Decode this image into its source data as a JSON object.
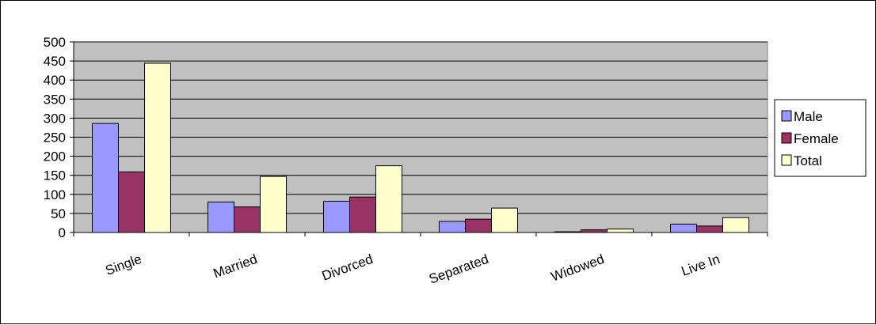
{
  "chart_data": {
    "type": "bar",
    "categories": [
      "Single",
      "Married",
      "Divorced",
      "Separated",
      "Widowed",
      "Live In"
    ],
    "series": [
      {
        "name": "Male",
        "color": "#9999FF",
        "values": [
          286,
          80,
          82,
          29,
          2,
          22
        ]
      },
      {
        "name": "Female",
        "color": "#993366",
        "values": [
          159,
          67,
          93,
          35,
          7,
          17
        ]
      },
      {
        "name": "Total",
        "color": "#FFFFCC",
        "values": [
          444,
          147,
          175,
          64,
          9,
          39
        ]
      }
    ],
    "ylim": [
      0,
      500
    ],
    "yticks": [
      "0",
      "50",
      "100",
      "150",
      "200",
      "250",
      "300",
      "350",
      "400",
      "450",
      "500"
    ],
    "grid": true,
    "plot_background": "#C0C0C0",
    "legend_position": "right",
    "title": "",
    "xlabel": "",
    "ylabel": ""
  }
}
